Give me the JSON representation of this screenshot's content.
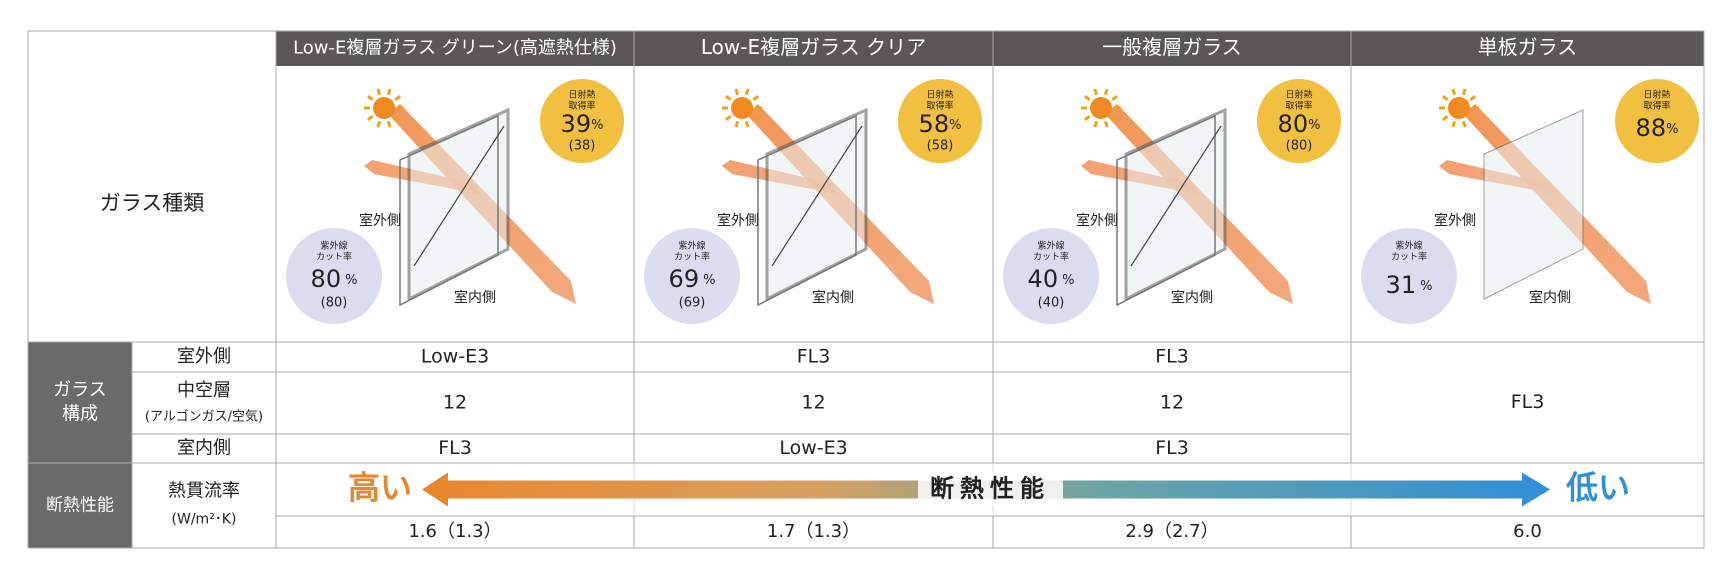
{
  "row_header": "ガラス種類",
  "columns": [
    {
      "name": "Low-E複層ガラス グリーン(高遮熱仕様)",
      "solar": {
        "label": [
          "日射熱",
          "取得率"
        ],
        "value": "39",
        "unit": "%",
        "sub": "(38)"
      },
      "uv": {
        "label": [
          "紫外線",
          "カット率"
        ],
        "value": "80",
        "unit": "%",
        "sub": "(80)"
      },
      "outside": "室外側",
      "inside": "室内側",
      "outer": "Low-E3",
      "air": "12",
      "inner": "FL3",
      "u": "1.6（1.3）"
    },
    {
      "name": "Low-E複層ガラス クリア",
      "solar": {
        "label": [
          "日射熱",
          "取得率"
        ],
        "value": "58",
        "unit": "%",
        "sub": "(58)"
      },
      "uv": {
        "label": [
          "紫外線",
          "カット率"
        ],
        "value": "69",
        "unit": "%",
        "sub": "(69)"
      },
      "outside": "室外側",
      "inside": "室内側",
      "outer": "FL3",
      "air": "12",
      "inner": "Low-E3",
      "u": "1.7（1.3）"
    },
    {
      "name": "一般複層ガラス",
      "solar": {
        "label": [
          "日射熱",
          "取得率"
        ],
        "value": "80",
        "unit": "%",
        "sub": "(80)"
      },
      "uv": {
        "label": [
          "紫外線",
          "カット率"
        ],
        "value": "40",
        "unit": "%",
        "sub": "(40)"
      },
      "outside": "室外側",
      "inside": "室内側",
      "outer": "FL3",
      "air": "12",
      "inner": "FL3",
      "u": "2.9（2.7）"
    },
    {
      "name": "単板ガラス",
      "solar": {
        "label": [
          "日射熱",
          "取得率"
        ],
        "value": "88",
        "unit": "%"
      },
      "uv": {
        "label": [
          "紫外線",
          "カット率"
        ],
        "value": "31",
        "unit": "%"
      },
      "outside": "室外側",
      "inside": "室内側",
      "glass": "FL3",
      "u": "6.0"
    }
  ],
  "composition": {
    "group": [
      "ガラス",
      "構成"
    ],
    "outer": "室外側",
    "air": "中空層",
    "air_sub": "(アルゴンガス/空気)",
    "inner": "室内側"
  },
  "performance": {
    "group": "断熱性能",
    "label": "熱貫流率",
    "unit": "(W/m²･K)",
    "high": "高い",
    "center": "断熱性能",
    "low": "低い"
  }
}
